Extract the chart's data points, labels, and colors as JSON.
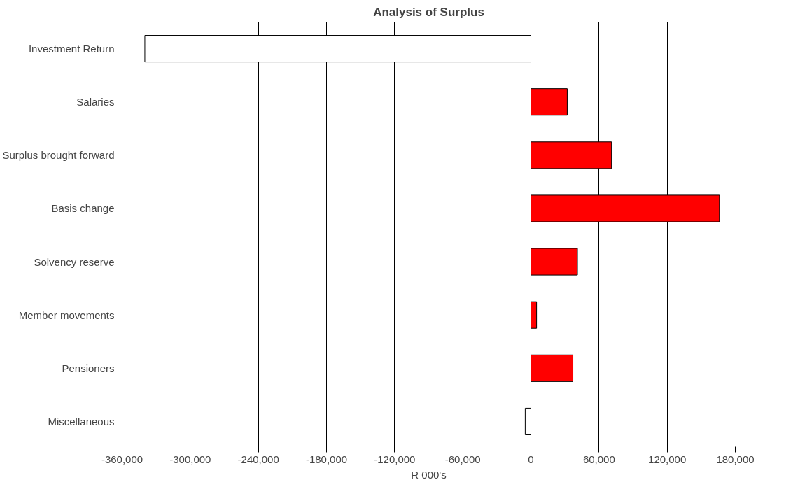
{
  "chart_data": {
    "type": "bar",
    "orientation": "horizontal",
    "title": "Analysis of Surplus",
    "xlabel": "R 000's",
    "categories": [
      "Investment Return",
      "Salaries",
      "Surplus brought forward",
      "Basis change",
      "Solvency reserve",
      "Member movements",
      "Pensioners",
      "Miscellaneous"
    ],
    "values": [
      -340000,
      32000,
      71000,
      166000,
      41000,
      5000,
      37000,
      -5000
    ],
    "colors": [
      "#ffffff",
      "#ff0000",
      "#ff0000",
      "#ff0000",
      "#ff0000",
      "#ff0000",
      "#ff0000",
      "#ffffff"
    ],
    "xlim": [
      -360000,
      180000
    ],
    "xticks": [
      {
        "value": -360000,
        "label": "-360,000"
      },
      {
        "value": -300000,
        "label": "-300,000"
      },
      {
        "value": -240000,
        "label": "-240,000"
      },
      {
        "value": -180000,
        "label": "-180,000"
      },
      {
        "value": -120000,
        "label": "-120,000"
      },
      {
        "value": -60000,
        "label": "-60,000"
      },
      0,
      {
        "value": 60000,
        "label": "60,000"
      },
      {
        "value": 120000,
        "label": "120,000"
      },
      {
        "value": 180000,
        "label": "180,000"
      }
    ],
    "grid": "x"
  }
}
